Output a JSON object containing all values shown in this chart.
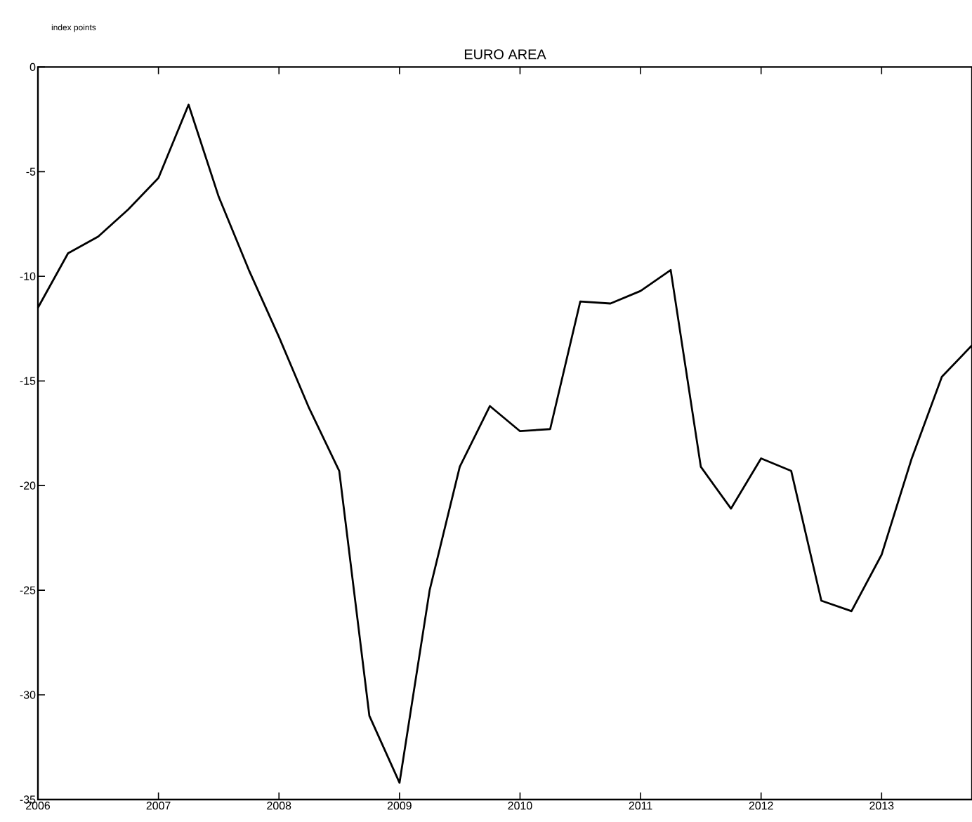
{
  "chart_data": {
    "type": "line",
    "title": "EURO AREA",
    "ylabel": "index points",
    "x": [
      2006,
      2006.25,
      2006.5,
      2006.75,
      2007,
      2007.25,
      2007.5,
      2007.75,
      2008,
      2008.25,
      2008.5,
      2008.75,
      2009,
      2009.25,
      2009.5,
      2009.75,
      2010,
      2010.25,
      2010.5,
      2010.75,
      2011,
      2011.25,
      2011.5,
      2011.75,
      2012,
      2012.25,
      2012.5,
      2012.75,
      2013,
      2013.25,
      2013.5,
      2013.75
    ],
    "series": [
      {
        "color": "#000000",
        "values": [
          -11.5,
          -8.9,
          -8.1,
          -6.8,
          -5.3,
          -1.8,
          -6.2,
          -9.7,
          -12.9,
          -16.3,
          -19.3,
          -31.0,
          -34.2,
          -25.0,
          -19.1,
          -16.2,
          -17.4,
          -17.3,
          -11.2,
          -11.3,
          -10.7,
          -9.7,
          -19.1,
          -21.1,
          -18.7,
          -19.3,
          -25.5,
          -26.0,
          -23.3,
          -18.7,
          -14.8,
          -13.3
        ]
      }
    ],
    "xlim": [
      2006,
      2013.75
    ],
    "xticks": [
      2006,
      2007,
      2008,
      2009,
      2010,
      2011,
      2012,
      2013
    ],
    "ylim": [
      -35,
      0
    ],
    "yticks": [
      -35,
      -30,
      -25,
      -20,
      -15,
      -10,
      -5,
      0
    ],
    "grid": false,
    "marker": "none",
    "line_style": "solid"
  }
}
